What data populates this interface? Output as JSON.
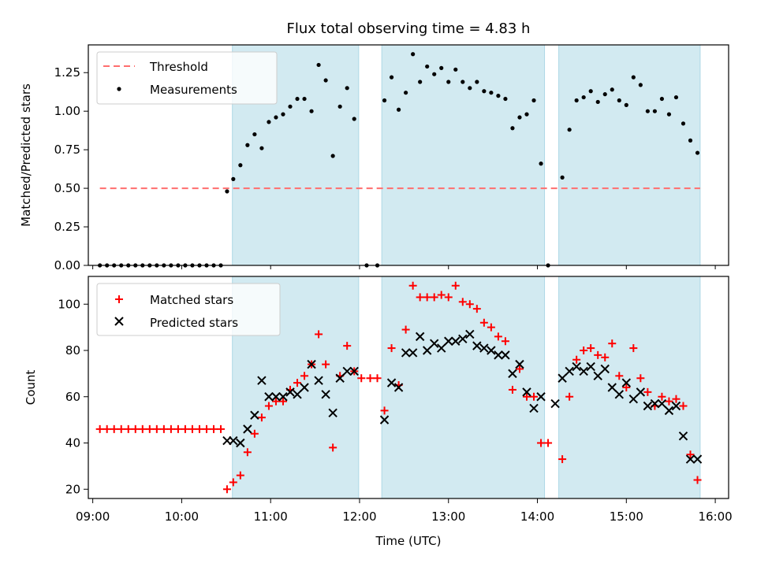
{
  "chart_data": [
    {
      "type": "scatter",
      "title": "Flux total observing time = 4.83 h",
      "xlabel": "",
      "ylabel": "Matched/Predicted stars",
      "xlim": [
        8.95,
        16.15
      ],
      "ylim": [
        0,
        1.43
      ],
      "yticks": [
        0.0,
        0.25,
        0.5,
        0.75,
        1.0,
        1.25
      ],
      "ytick_labels": [
        "0.00",
        "0.25",
        "0.50",
        "0.75",
        "1.00",
        "1.25"
      ],
      "legend": [
        "Threshold",
        "Measurements"
      ],
      "threshold": {
        "name": "Threshold",
        "y": 0.5,
        "x": [
          9.08,
          15.83
        ],
        "color": "#ff6e6e"
      },
      "shaded_intervals": [
        [
          10.57,
          11.99
        ],
        [
          12.25,
          14.08
        ],
        [
          14.24,
          15.83
        ]
      ],
      "shade_color": "#add8e6",
      "series": [
        {
          "name": "Measurements",
          "color": "#000000",
          "x": [
            9.08,
            9.16,
            9.24,
            9.32,
            9.4,
            9.48,
            9.56,
            9.64,
            9.72,
            9.8,
            9.88,
            9.96,
            10.04,
            10.12,
            10.2,
            10.28,
            10.36,
            10.44,
            10.51,
            10.58,
            10.66,
            10.74,
            10.82,
            10.9,
            10.98,
            11.06,
            11.14,
            11.22,
            11.3,
            11.38,
            11.46,
            11.54,
            11.62,
            11.7,
            11.78,
            11.86,
            11.94,
            12.08,
            12.2,
            12.28,
            12.36,
            12.44,
            12.52,
            12.6,
            12.68,
            12.76,
            12.84,
            12.92,
            13.0,
            13.08,
            13.16,
            13.24,
            13.32,
            13.4,
            13.48,
            13.56,
            13.64,
            13.72,
            13.8,
            13.88,
            13.96,
            14.04,
            14.12,
            14.28,
            14.36,
            14.44,
            14.52,
            14.6,
            14.68,
            14.76,
            14.84,
            14.92,
            15.0,
            15.08,
            15.16,
            15.24,
            15.32,
            15.4,
            15.48,
            15.56,
            15.64,
            15.72,
            15.8
          ],
          "y": [
            0,
            0,
            0,
            0,
            0,
            0,
            0,
            0,
            0,
            0,
            0,
            0,
            0,
            0,
            0,
            0,
            0,
            0,
            0.48,
            0.56,
            0.65,
            0.78,
            0.85,
            0.76,
            0.93,
            0.96,
            0.98,
            1.03,
            1.08,
            1.08,
            1.0,
            1.3,
            1.2,
            0.71,
            1.03,
            1.15,
            0.95,
            0,
            0,
            1.07,
            1.22,
            1.01,
            1.12,
            1.37,
            1.19,
            1.29,
            1.24,
            1.28,
            1.19,
            1.27,
            1.19,
            1.15,
            1.19,
            1.13,
            1.12,
            1.1,
            1.08,
            0.89,
            0.96,
            0.98,
            1.07,
            0.66,
            0,
            0.57,
            0.88,
            1.07,
            1.09,
            1.13,
            1.06,
            1.11,
            1.14,
            1.07,
            1.04,
            1.22,
            1.17,
            1.0,
            1.0,
            1.08,
            0.98,
            1.09,
            0.92,
            0.81,
            0.73
          ]
        }
      ]
    },
    {
      "type": "scatter",
      "title": "",
      "xlabel": "Time (UTC)",
      "ylabel": "Count",
      "xlim": [
        8.95,
        16.15
      ],
      "ylim": [
        16,
        112
      ],
      "yticks": [
        20,
        40,
        60,
        80,
        100
      ],
      "ytick_labels": [
        "20",
        "40",
        "60",
        "80",
        "100"
      ],
      "xticks": [
        9,
        10,
        11,
        12,
        13,
        14,
        15,
        16
      ],
      "xtick_labels": [
        "09:00",
        "10:00",
        "11:00",
        "12:00",
        "13:00",
        "14:00",
        "15:00",
        "16:00"
      ],
      "legend": [
        "Matched stars",
        "Predicted stars"
      ],
      "shaded_intervals": [
        [
          10.57,
          11.99
        ],
        [
          12.25,
          14.08
        ],
        [
          14.24,
          15.83
        ]
      ],
      "shade_color": "#add8e6",
      "series": [
        {
          "name": "Matched stars",
          "marker": "plus",
          "color": "#ff0000",
          "x": [
            9.08,
            9.16,
            9.24,
            9.32,
            9.4,
            9.48,
            9.56,
            9.64,
            9.72,
            9.8,
            9.88,
            9.96,
            10.04,
            10.12,
            10.2,
            10.28,
            10.36,
            10.44,
            10.51,
            10.58,
            10.66,
            10.74,
            10.82,
            10.9,
            10.98,
            11.06,
            11.14,
            11.22,
            11.3,
            11.38,
            11.46,
            11.54,
            11.62,
            11.7,
            11.78,
            11.86,
            11.94,
            12.02,
            12.12,
            12.2,
            12.28,
            12.36,
            12.44,
            12.52,
            12.6,
            12.68,
            12.76,
            12.84,
            12.92,
            13.0,
            13.08,
            13.16,
            13.24,
            13.32,
            13.4,
            13.48,
            13.56,
            13.64,
            13.72,
            13.8,
            13.88,
            13.96,
            14.04,
            14.12,
            14.28,
            14.36,
            14.44,
            14.52,
            14.6,
            14.68,
            14.76,
            14.84,
            14.92,
            15.0,
            15.08,
            15.16,
            15.24,
            15.32,
            15.4,
            15.48,
            15.56,
            15.64,
            15.72,
            15.8
          ],
          "y": [
            46,
            46,
            46,
            46,
            46,
            46,
            46,
            46,
            46,
            46,
            46,
            46,
            46,
            46,
            46,
            46,
            46,
            46,
            20,
            23,
            26,
            36,
            44,
            51,
            56,
            58,
            58,
            63,
            66,
            69,
            74,
            87,
            74,
            38,
            69,
            82,
            71,
            68,
            68,
            68,
            54,
            81,
            65,
            89,
            108,
            103,
            103,
            103,
            104,
            103,
            108,
            101,
            100,
            98,
            92,
            90,
            86,
            84,
            63,
            72,
            60,
            60,
            40,
            40,
            33,
            60,
            76,
            80,
            81,
            78,
            77,
            83,
            69,
            64,
            81,
            68,
            62,
            56,
            60,
            58,
            59,
            56,
            35,
            24
          ]
        },
        {
          "name": "Predicted stars",
          "marker": "x",
          "color": "#000000",
          "x": [
            10.51,
            10.58,
            10.66,
            10.74,
            10.82,
            10.9,
            10.98,
            11.06,
            11.14,
            11.22,
            11.3,
            11.38,
            11.46,
            11.54,
            11.62,
            11.7,
            11.78,
            11.86,
            11.94,
            12.28,
            12.36,
            12.44,
            12.52,
            12.6,
            12.68,
            12.76,
            12.84,
            12.92,
            13.0,
            13.08,
            13.16,
            13.24,
            13.32,
            13.4,
            13.48,
            13.56,
            13.64,
            13.72,
            13.8,
            13.88,
            13.96,
            14.04,
            14.2,
            14.28,
            14.36,
            14.44,
            14.52,
            14.6,
            14.68,
            14.76,
            14.84,
            14.92,
            15.0,
            15.08,
            15.16,
            15.24,
            15.32,
            15.4,
            15.48,
            15.56,
            15.64,
            15.72,
            15.8
          ],
          "y": [
            41,
            41,
            40,
            46,
            52,
            67,
            60,
            60,
            60,
            62,
            61,
            64,
            74,
            67,
            61,
            53,
            68,
            71,
            71,
            50,
            66,
            64,
            79,
            79,
            86,
            80,
            83,
            81,
            84,
            84,
            85,
            87,
            82,
            81,
            80,
            78,
            78,
            70,
            74,
            62,
            55,
            60,
            57,
            68,
            71,
            73,
            71,
            73,
            69,
            72,
            64,
            61,
            66,
            59,
            62,
            56,
            57,
            57,
            54,
            56,
            43,
            33,
            33
          ]
        }
      ]
    }
  ]
}
